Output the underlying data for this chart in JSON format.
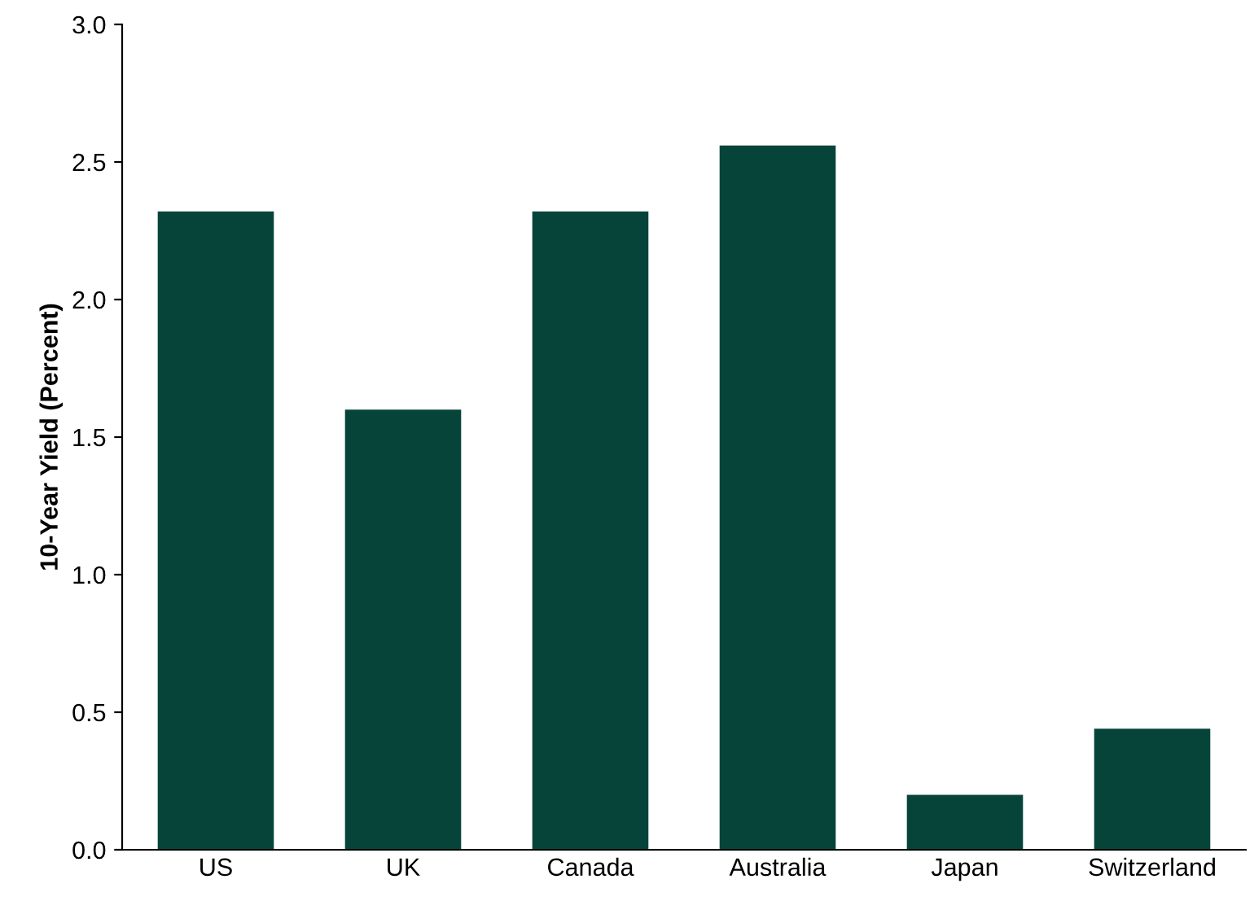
{
  "chart_data": {
    "type": "bar",
    "ylabel": "10-Year Yield (Percent)",
    "categories": [
      "US",
      "UK",
      "Canada",
      "Australia",
      "Japan",
      "Switzerland"
    ],
    "values": [
      2.32,
      1.6,
      2.32,
      2.56,
      0.2,
      0.44
    ],
    "color": "#06443a",
    "ylim": [
      0,
      3.0
    ],
    "yticks": [
      {
        "value": 0,
        "label": "0.0"
      },
      {
        "value": 0.5,
        "label": "0.5"
      },
      {
        "value": 1.0,
        "label": "1.0"
      },
      {
        "value": 1.5,
        "label": "1.5"
      },
      {
        "value": 2.0,
        "label": "2.0"
      },
      {
        "value": 2.5,
        "label": "2.5"
      },
      {
        "value": 3.0,
        "label": "3.0"
      }
    ],
    "grid": false
  }
}
